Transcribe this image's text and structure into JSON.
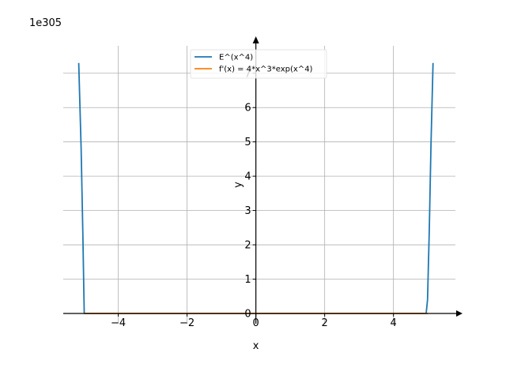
{
  "chart_data": {
    "type": "line",
    "title": "",
    "xlabel": "x",
    "ylabel": "y",
    "y_offset_text": "1e305",
    "xlim": [
      -5.6,
      5.8
    ],
    "ylim": [
      -0.3,
      7.8
    ],
    "x_ticks": [
      -4,
      -2,
      0,
      2,
      4
    ],
    "x_tick_labels": [
      "−4",
      "−2",
      "0",
      "2",
      "4"
    ],
    "y_ticks": [
      0,
      1,
      2,
      3,
      4,
      5,
      6,
      7
    ],
    "y_tick_labels": [
      "0",
      "1",
      "2",
      "3",
      "4",
      "5",
      "6",
      "7"
    ],
    "grid": true,
    "legend_position": "top-center",
    "series": [
      {
        "name": "E^(x^4)",
        "color": "#1f77b4",
        "x": [
          -5.15,
          -5.08,
          -5.03,
          -4.99,
          4.95,
          4.99,
          5.04,
          5.09,
          5.15
        ],
        "y": [
          7.3,
          4.8,
          2.3,
          0.0,
          0.0,
          0.4,
          2.4,
          4.9,
          7.3
        ]
      },
      {
        "name": "f'(x) = 4*x^3*exp(x^4)",
        "color": "#ff7f0e",
        "x": [
          -5.0,
          5.0
        ],
        "y": [
          0.0,
          0.0
        ]
      }
    ]
  }
}
